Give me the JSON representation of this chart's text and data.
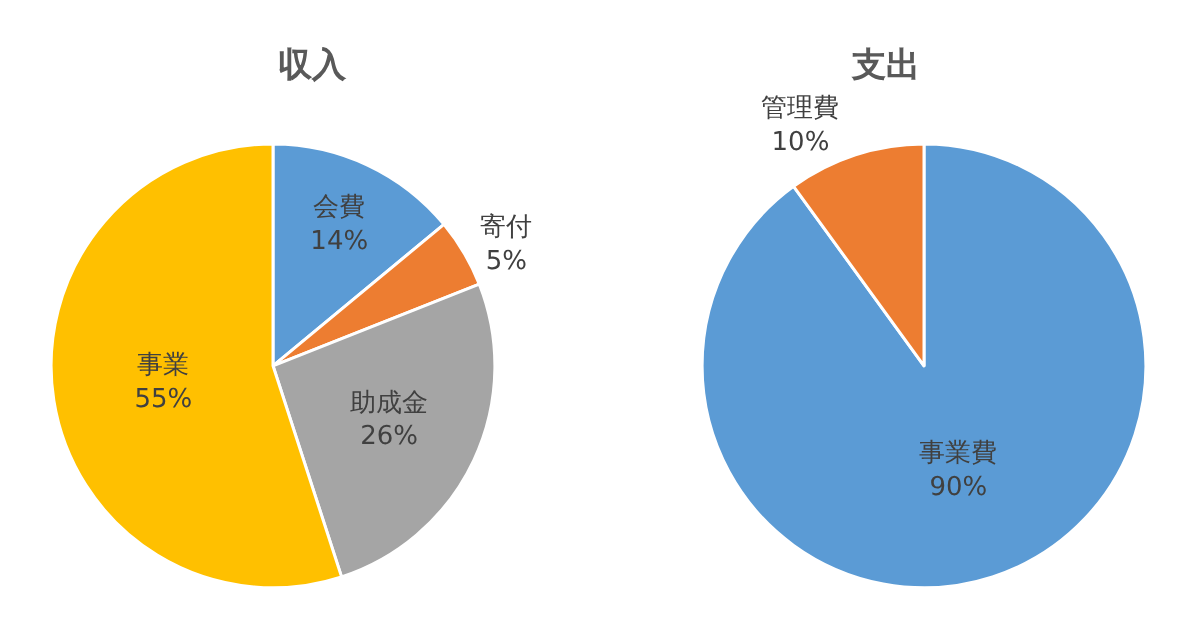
{
  "chart_data": [
    {
      "type": "pie",
      "title": "収入",
      "categories": [
        "会費",
        "寄付",
        "助成金",
        "事業"
      ],
      "values": [
        14,
        5,
        26,
        55
      ],
      "colors": [
        "#5b9bd5",
        "#ed7d31",
        "#a5a5a5",
        "#ffc000"
      ],
      "value_labels": [
        "14%",
        "5%",
        "26%",
        "55%"
      ],
      "legend": false
    },
    {
      "type": "pie",
      "title": "支出",
      "categories": [
        "事業費",
        "管理費"
      ],
      "values": [
        90,
        10
      ],
      "colors": [
        "#5b9bd5",
        "#ed7d31"
      ],
      "value_labels": [
        "90%",
        "10%"
      ],
      "legend": false
    }
  ]
}
